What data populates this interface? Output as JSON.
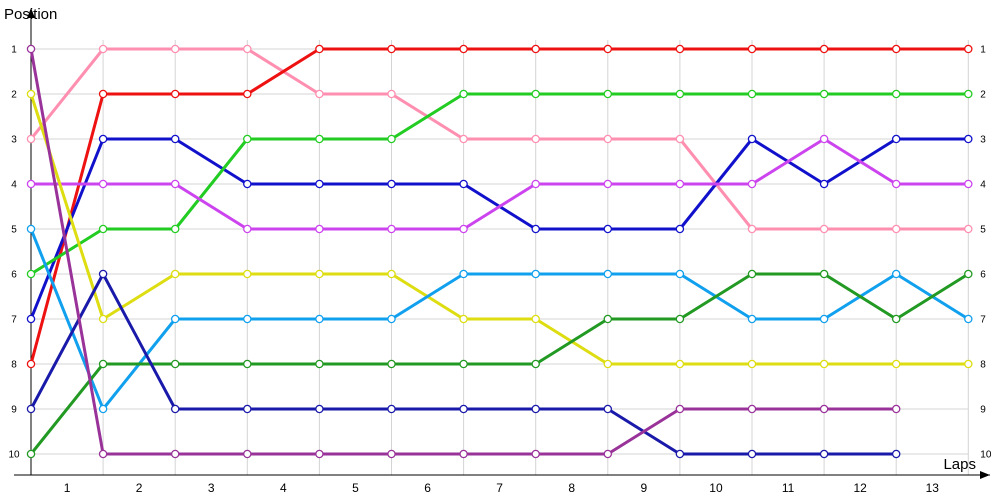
{
  "chart_data": {
    "type": "line",
    "title": "",
    "xlabel": "Laps",
    "ylabel": "Position",
    "x_tick_labels": [
      "1",
      "2",
      "3",
      "4",
      "5",
      "6",
      "7",
      "8",
      "9",
      "10",
      "11",
      "12",
      "13"
    ],
    "y_tick_labels": [
      "1",
      "2",
      "3",
      "4",
      "5",
      "6",
      "7",
      "8",
      "9",
      "10"
    ],
    "ylim": [
      1,
      10
    ],
    "y_inverted": true,
    "grid": true,
    "legend": "none",
    "series": [
      {
        "color": "#ff8fb0",
        "values": [
          3,
          1,
          1,
          1,
          2,
          2,
          3,
          3,
          3,
          3,
          5,
          5,
          5,
          5
        ]
      },
      {
        "color": "#ee1111",
        "values": [
          8,
          2,
          2,
          2,
          1,
          1,
          1,
          1,
          1,
          1,
          1,
          1,
          1,
          1
        ]
      },
      {
        "color": "#1111cc",
        "values": [
          7,
          3,
          3,
          4,
          4,
          4,
          4,
          5,
          5,
          5,
          3,
          4,
          3,
          3
        ]
      },
      {
        "color": "#22cc22",
        "values": [
          6,
          5,
          5,
          3,
          3,
          3,
          2,
          2,
          2,
          2,
          2,
          2,
          2,
          2
        ]
      },
      {
        "color": "#cc44ee",
        "values": [
          4,
          4,
          4,
          5,
          5,
          5,
          5,
          4,
          4,
          4,
          4,
          3,
          4,
          4
        ]
      },
      {
        "color": "#dddd11",
        "values": [
          2,
          7,
          6,
          6,
          6,
          6,
          7,
          7,
          8,
          8,
          8,
          8,
          8,
          8
        ]
      },
      {
        "color": "#11a0ee",
        "values": [
          5,
          9,
          7,
          7,
          7,
          7,
          6,
          6,
          6,
          6,
          7,
          7,
          6,
          7
        ]
      },
      {
        "color": "#229922",
        "values": [
          10,
          8,
          8,
          8,
          8,
          8,
          8,
          8,
          7,
          7,
          6,
          6,
          7,
          6
        ]
      },
      {
        "color": "#1a1aaa",
        "values": [
          9,
          6,
          9,
          9,
          9,
          9,
          9,
          9,
          9,
          10,
          10,
          10,
          10,
          null
        ]
      },
      {
        "color": "#993399",
        "values": [
          1,
          10,
          10,
          10,
          10,
          10,
          10,
          10,
          10,
          9,
          9,
          9,
          9,
          null
        ]
      }
    ]
  }
}
